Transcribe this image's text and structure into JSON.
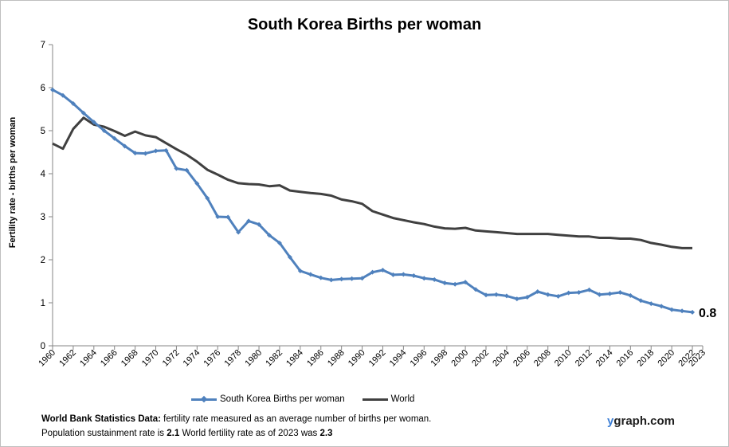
{
  "chart_data": {
    "type": "line",
    "title": "South Korea Births per woman",
    "ylabel": "Fertility rate  - births per woman",
    "xlabel": "",
    "ylim": [
      0,
      7
    ],
    "xlim": [
      1960,
      2023
    ],
    "y_ticks": [
      "0",
      "1",
      "2",
      "3",
      "4",
      "5",
      "6",
      "7"
    ],
    "x_ticks": [
      "1960",
      "1962",
      "1964",
      "1966",
      "1968",
      "1970",
      "1972",
      "1974",
      "1976",
      "1978",
      "1980",
      "1982",
      "1984",
      "1986",
      "1988",
      "1990",
      "1992",
      "1994",
      "1996",
      "1998",
      "2000",
      "2002",
      "2004",
      "2006",
      "2008",
      "2010",
      "2012",
      "2014",
      "2016",
      "2018",
      "2020",
      "2022",
      "2023"
    ],
    "grid": false,
    "legend_position": "bottom",
    "series": [
      {
        "name": "South Korea Births per woman",
        "color": "#4f81bd",
        "marker": "diamond",
        "x": [
          1960,
          1961,
          1962,
          1963,
          1964,
          1965,
          1966,
          1967,
          1968,
          1969,
          1970,
          1971,
          1972,
          1973,
          1974,
          1975,
          1976,
          1977,
          1978,
          1979,
          1980,
          1981,
          1982,
          1983,
          1984,
          1985,
          1986,
          1987,
          1988,
          1989,
          1990,
          1991,
          1992,
          1993,
          1994,
          1995,
          1996,
          1997,
          1998,
          1999,
          2000,
          2001,
          2002,
          2003,
          2004,
          2005,
          2006,
          2007,
          2008,
          2009,
          2010,
          2011,
          2012,
          2013,
          2014,
          2015,
          2016,
          2017,
          2018,
          2019,
          2020,
          2021,
          2022
        ],
        "values": [
          5.95,
          5.82,
          5.63,
          5.41,
          5.2,
          5.0,
          4.82,
          4.64,
          4.48,
          4.47,
          4.53,
          4.54,
          4.12,
          4.08,
          3.77,
          3.43,
          3.0,
          2.99,
          2.64,
          2.9,
          2.82,
          2.57,
          2.39,
          2.06,
          1.74,
          1.66,
          1.58,
          1.53,
          1.55,
          1.56,
          1.57,
          1.71,
          1.76,
          1.65,
          1.66,
          1.63,
          1.57,
          1.54,
          1.46,
          1.43,
          1.48,
          1.31,
          1.18,
          1.19,
          1.16,
          1.09,
          1.13,
          1.26,
          1.19,
          1.15,
          1.23,
          1.24,
          1.3,
          1.19,
          1.21,
          1.24,
          1.17,
          1.05,
          0.98,
          0.92,
          0.84,
          0.81,
          0.78
        ]
      },
      {
        "name": "World",
        "color": "#404040",
        "marker": "none",
        "x": [
          1960,
          1961,
          1962,
          1963,
          1964,
          1965,
          1966,
          1967,
          1968,
          1969,
          1970,
          1971,
          1972,
          1973,
          1974,
          1975,
          1976,
          1977,
          1978,
          1979,
          1980,
          1981,
          1982,
          1983,
          1984,
          1985,
          1986,
          1987,
          1988,
          1989,
          1990,
          1991,
          1992,
          1993,
          1994,
          1995,
          1996,
          1997,
          1998,
          1999,
          2000,
          2001,
          2002,
          2003,
          2004,
          2005,
          2006,
          2007,
          2008,
          2009,
          2010,
          2011,
          2012,
          2013,
          2014,
          2015,
          2016,
          2017,
          2018,
          2019,
          2020,
          2021,
          2022
        ],
        "values": [
          4.7,
          4.58,
          5.04,
          5.3,
          5.14,
          5.09,
          4.99,
          4.88,
          4.98,
          4.89,
          4.85,
          4.71,
          4.57,
          4.44,
          4.28,
          4.09,
          3.98,
          3.86,
          3.78,
          3.76,
          3.75,
          3.71,
          3.73,
          3.61,
          3.58,
          3.55,
          3.53,
          3.49,
          3.4,
          3.36,
          3.3,
          3.13,
          3.05,
          2.97,
          2.92,
          2.87,
          2.83,
          2.77,
          2.73,
          2.72,
          2.74,
          2.68,
          2.66,
          2.64,
          2.62,
          2.6,
          2.6,
          2.6,
          2.6,
          2.58,
          2.56,
          2.54,
          2.54,
          2.51,
          2.51,
          2.49,
          2.49,
          2.46,
          2.39,
          2.35,
          2.3,
          2.27,
          2.27
        ]
      }
    ],
    "annotations": [
      {
        "text": "0.8",
        "anchor_series": "South Korea Births per woman",
        "anchor_x": 2022
      }
    ]
  },
  "footer": {
    "line1_bold": "World Bank Statistics Data:",
    "line1_rest": " fertility rate measured as an average number  of births per woman.",
    "line2_prefix": "Population sustainment rate is ",
    "line2_value1": "2.1",
    "line2_mid": "    World fertility rate as of 2023 was ",
    "line2_value2": "2.3"
  },
  "brand": {
    "prefix": "y",
    "rest": "graph.com"
  }
}
